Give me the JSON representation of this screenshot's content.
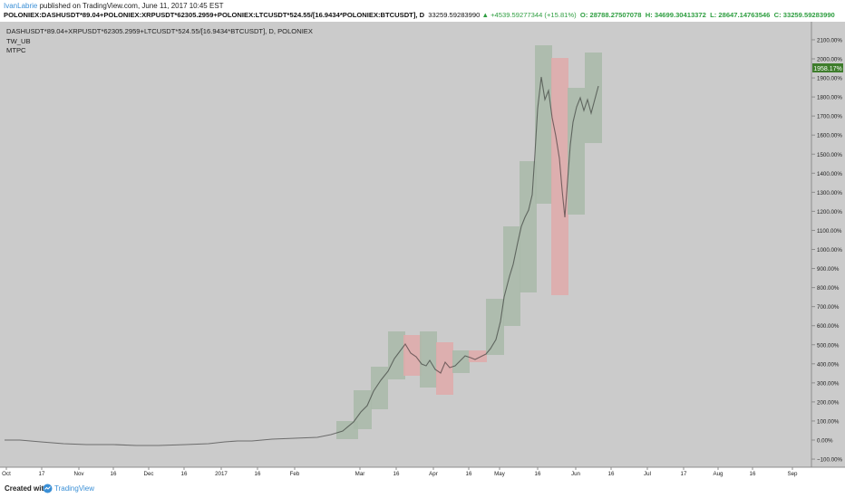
{
  "header": {
    "author": "IvanLabrie",
    "published": " published on TradingView.com, June 11, 2017 10:45 EST",
    "symbol": "POLONIEX:DASHUSDT*89.04+POLONIEX:XRPUSDT*62305.2959+POLONIEX:LTCUSDT*524.55/[16.9434*POLONIEX:BTCUSDT], D",
    "last": "33259.59283990",
    "change": "+4539.59277344 (+15.81%)",
    "open": "O: 28788.27507078",
    "high": "H: 34699.30413372",
    "low": "L: 28647.14763546",
    "close": "C: 33259.59283990"
  },
  "legend": {
    "line1": "DASHUSDT*89.04+XRPUSDT*62305.2959+LTCUSDT*524.55/[16.9434*BTCUSDT], D, POLONIEX",
    "line2": "TW_UB",
    "line3": "MTPC"
  },
  "footer": {
    "created": "Created with",
    "brand": "TradingView"
  },
  "colors": {
    "up": "#4c9a3a",
    "down": "#d23a3a",
    "bg": "#cbcbcb",
    "boxGreen": "#a9baa9",
    "boxRed": "#e0aaaa"
  },
  "chart_data": {
    "type": "candlestick",
    "y_unit": "%",
    "yticks": [
      -100,
      0,
      100,
      200,
      300,
      400,
      500,
      600,
      700,
      800,
      900,
      1000,
      1100,
      1200,
      1300,
      1400,
      1500,
      1600,
      1700,
      1800,
      1900,
      2000,
      2100
    ],
    "ylim": [
      -150,
      2200
    ],
    "xticks": [
      "Oct",
      "17",
      "Nov",
      "16",
      "Dec",
      "16",
      "2017",
      "16",
      "Feb",
      "Mar",
      "16",
      "Apr",
      "16",
      "May",
      "16",
      "Jun",
      "16",
      "Jul",
      "17",
      "Aug",
      "16",
      "Sep"
    ],
    "last_label": "1958.17%",
    "series": [
      {
        "period": "2016-10",
        "approx_value": 0
      },
      {
        "period": "2016-11",
        "approx_value": -15
      },
      {
        "period": "2016-12",
        "approx_value": -25
      },
      {
        "period": "2017-01",
        "approx_value": -10
      },
      {
        "period": "2017-02",
        "approx_value": 20
      },
      {
        "period": "2017-03-01",
        "approx_value": 120
      },
      {
        "period": "2017-03-10",
        "approx_value": 420
      },
      {
        "period": "2017-03-20",
        "approx_value": 430
      },
      {
        "period": "2017-04-01",
        "approx_value": 370
      },
      {
        "period": "2017-04-16",
        "approx_value": 440
      },
      {
        "period": "2017-05-01",
        "approx_value": 520
      },
      {
        "period": "2017-05-10",
        "approx_value": 1100
      },
      {
        "period": "2017-05-20",
        "approx_value": 2000
      },
      {
        "period": "2017-05-26",
        "approx_value": 1500
      },
      {
        "period": "2017-06-01",
        "approx_value": 1800
      },
      {
        "period": "2017-06-11",
        "approx_value": 1958
      }
    ]
  }
}
